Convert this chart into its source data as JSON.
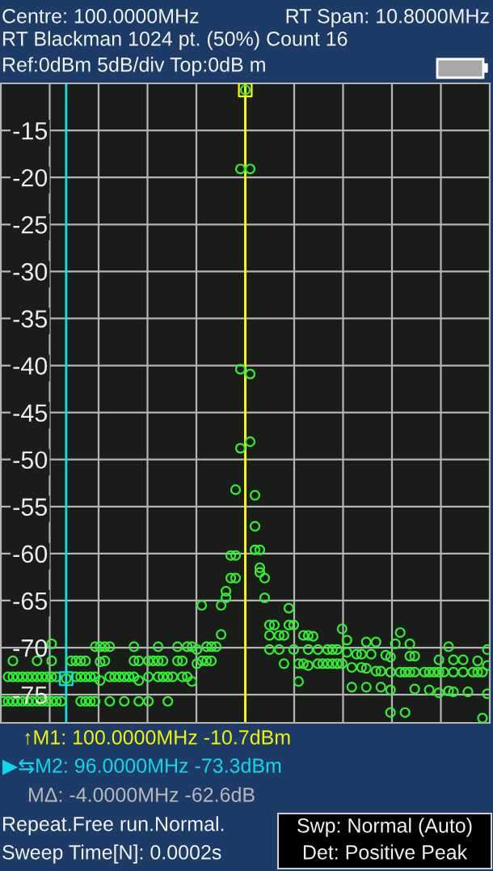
{
  "chart_data": {
    "type": "scatter",
    "annotations": [
      "Centre: 100.0000MHz",
      "RT Span: 10.8000MHz",
      "RT Blackman 1024 pt. (50%) Count 16",
      "Ref:0dBm 5dB/div Top:0dB m",
      "↑M1: 100.0000MHz -10.7dBm",
      "▶⇆M2: 96.0000MHz -73.3dBm",
      "MΔ: -4.0000MHz -62.6dB",
      "Repeat.Free run.Normal.",
      "Sweep Time[N]: 0.0002s",
      "Swp: Normal (Auto)",
      "Det: Positive Peak"
    ],
    "marker": "circle",
    "categories": [
      null,
      null,
      null,
      null,
      null,
      null,
      null,
      null,
      null,
      null,
      null,
      null,
      null,
      null,
      null,
      null,
      null,
      null,
      null,
      null,
      null,
      null,
      null,
      null,
      null,
      null,
      null,
      null,
      null,
      null,
      null,
      null,
      null,
      null,
      null,
      null,
      null,
      null,
      null,
      null,
      null,
      null,
      null,
      null,
      null,
      null,
      null,
      null,
      null,
      null,
      null,
      null,
      null,
      null,
      null,
      null,
      null,
      null,
      null,
      null,
      null,
      null,
      null,
      null,
      null,
      null,
      null,
      null,
      null,
      null,
      null,
      null,
      null,
      null,
      null,
      null,
      null,
      null,
      null,
      null,
      null,
      null,
      null,
      null,
      null,
      null,
      null,
      null,
      null,
      null,
      null,
      null,
      null,
      null,
      null,
      null,
      null,
      null,
      null,
      null,
      null
    ],
    "series": [
      {
        "color": "#30f030",
        "values": [
          -75.7,
          -73.1,
          -71.4,
          -73.1,
          -73.1,
          -73.1,
          -73.1,
          -71.4,
          -73.1,
          -73.1,
          -69.6,
          -73.1,
          -75.7,
          -73.3,
          -71.4,
          -71.4,
          -71.4,
          -71.4,
          -73.1,
          -69.9,
          -69.9,
          -69.9,
          -69.9,
          -73.1,
          -73.1,
          -73.1,
          -73.1,
          -69.9,
          -71.4,
          null,
          -71.4,
          -71.4,
          -69.9,
          -71.4,
          -73.1,
          -73.1,
          -69.9,
          -71.4,
          -69.9,
          -69.9,
          -70.2,
          -65.5,
          -69.9,
          -69.9,
          -69.9,
          -65.5,
          -64.0,
          -60.2,
          -53.2,
          -19.1,
          -10.7,
          -19.1,
          -53.8,
          -59.6,
          -62.6,
          -67.6,
          -67.6,
          -68.7,
          -68.7,
          -65.8,
          -67.6,
          -71.7,
          -68.7,
          -68.7,
          -68.8,
          -70.2,
          -71.7,
          -70.2,
          -70.2,
          -70.2,
          -68.0,
          -69.2,
          -72.1,
          -70.7,
          -70.7,
          -69.4,
          -70.7,
          -69.4,
          -72.5,
          -70.8,
          -71.0,
          -69.6,
          -68.4,
          -72.6,
          -69.6,
          -70.9,
          null,
          -72.6,
          -72.6,
          -72.6,
          -71.3,
          -72.6,
          -69.9,
          -71.3,
          null,
          -71.3,
          -74.7,
          -72.6,
          -71.4,
          -72.6,
          -70.2
        ]
      },
      {
        "color": "#30f030",
        "values": [
          null,
          -75.7,
          -73.1,
          -75.7,
          -75.7,
          -75.7,
          -75.7,
          -73.1,
          -75.7,
          -75.7,
          -71.4,
          -75.7,
          null,
          null,
          null,
          -73.1,
          -73.1,
          -73.1,
          -75.7,
          -73.1,
          -71.5,
          -71.4,
          -73.1,
          null,
          null,
          -75.7,
          null,
          -71.4,
          -73.5,
          null,
          -73.1,
          null,
          -71.4,
          -73.1,
          -75.7,
          null,
          -71.4,
          -73.1,
          -73.1,
          -73.6,
          -71.7,
          -71.4,
          -71.4,
          -71.4,
          null,
          -68.6,
          -64.7,
          -62.6,
          -60.2,
          -40.4,
          null,
          -40.9,
          -57.1,
          -61.5,
          -64.7,
          -68.7,
          null,
          -70.2,
          -71.7,
          -67.6,
          -70.2,
          -73.6,
          -71.7,
          -70.2,
          null,
          -71.7,
          null,
          -71.7,
          -71.7,
          -71.7,
          -71.7,
          -70.5,
          -74.2,
          null,
          -72.1,
          -72.2,
          null,
          -72.5,
          -74.2,
          null,
          -72.6,
          null,
          -72.6,
          -76.9,
          -70.9,
          -72.6,
          null,
          null,
          -74.5,
          null,
          -72.6,
          null,
          -74.6,
          -72.6,
          null,
          -72.6,
          null,
          null,
          -72.6,
          -77.5,
          -71.9
        ]
      },
      {
        "color": "#30f030",
        "values": [
          null,
          null,
          -75.7,
          null,
          null,
          null,
          null,
          -75.7,
          null,
          null,
          -73.1,
          null,
          null,
          null,
          null,
          null,
          -75.7,
          -75.7,
          null,
          -75.7,
          -73.5,
          null,
          -75.7,
          null,
          null,
          null,
          null,
          -73.1,
          -75.7,
          null,
          -75.7,
          null,
          -73.1,
          null,
          null,
          null,
          null,
          null,
          null,
          null,
          null,
          null,
          null,
          null,
          null,
          null,
          null,
          null,
          -62.6,
          -48.8,
          null,
          -48.1,
          -59.6,
          -62.0,
          null,
          -70.2,
          null,
          null,
          null,
          null,
          null,
          null,
          null,
          -71.9,
          null,
          null,
          null,
          null,
          null,
          null,
          null,
          null,
          null,
          null,
          null,
          -74.2,
          null,
          null,
          null,
          null,
          -74.5,
          null,
          null,
          null,
          -72.6,
          -74.4,
          null,
          null,
          null,
          null,
          -74.8,
          null,
          null,
          -74.7,
          null,
          null,
          null,
          null,
          null,
          null,
          -74.9
        ]
      },
      {
        "color": "#30f030",
        "values": [
          null,
          null,
          null,
          null,
          null,
          null,
          null,
          null,
          null,
          null,
          -75.7,
          null,
          null,
          null,
          null,
          null,
          null,
          null,
          null,
          null,
          null,
          null,
          null,
          null,
          null,
          null,
          null,
          null,
          null,
          null,
          null,
          null,
          null,
          null,
          null,
          null,
          null,
          null,
          null,
          null,
          null,
          null,
          null,
          null,
          null,
          null,
          null,
          null,
          null,
          null,
          null,
          null,
          null,
          null,
          null,
          null,
          null,
          null,
          null,
          null,
          null,
          null,
          null,
          null,
          null,
          null,
          null,
          null,
          null,
          null,
          null,
          null,
          null,
          null,
          null,
          null,
          null,
          null,
          null,
          null,
          -76.9,
          null,
          null,
          null,
          null,
          null,
          null,
          null,
          null,
          null,
          null,
          null,
          null,
          null,
          null,
          null,
          null,
          null,
          null,
          null,
          null
        ]
      },
      {
        "color": "#ffff00",
        "marker": "square",
        "values": [
          null,
          null,
          null,
          null,
          null,
          null,
          null,
          null,
          null,
          null,
          null,
          null,
          null,
          null,
          null,
          null,
          null,
          null,
          null,
          null,
          null,
          null,
          null,
          null,
          null,
          null,
          null,
          null,
          null,
          null,
          null,
          null,
          null,
          null,
          null,
          null,
          null,
          null,
          null,
          null,
          null,
          null,
          null,
          null,
          null,
          null,
          null,
          null,
          null,
          null,
          -10.7,
          null,
          null,
          null,
          null,
          null,
          null,
          null,
          null,
          null,
          null,
          null,
          null,
          null,
          null,
          null,
          null,
          null,
          null,
          null,
          null,
          null,
          null,
          null,
          null,
          null,
          null,
          null,
          null,
          null,
          null,
          null,
          null,
          null,
          null,
          null,
          null,
          null,
          null,
          null,
          null,
          null,
          null,
          null,
          null,
          null,
          null,
          null,
          null,
          null,
          null
        ]
      },
      {
        "color": "#00e5ee",
        "marker": "square",
        "values": [
          null,
          null,
          null,
          null,
          null,
          null,
          null,
          null,
          null,
          null,
          null,
          null,
          null,
          -73.3,
          null,
          null,
          null,
          null,
          null,
          null,
          null,
          null,
          null,
          null,
          null,
          null,
          null,
          null,
          null,
          null,
          null,
          null,
          null,
          null,
          null,
          null,
          null,
          null,
          null,
          null,
          null,
          null,
          null,
          null,
          null,
          null,
          null,
          null,
          null,
          null,
          null,
          null,
          null,
          null,
          null,
          null,
          null,
          null,
          null,
          null,
          null,
          null,
          null,
          null,
          null,
          null,
          null,
          null,
          null,
          null,
          null,
          null,
          null,
          null,
          null,
          null,
          null,
          null,
          null,
          null,
          null,
          null,
          null,
          null,
          null,
          null,
          null,
          null,
          null,
          null,
          null,
          null,
          null,
          null,
          null,
          null,
          null,
          null,
          null,
          null,
          null
        ]
      }
    ],
    "ylim": [
      -78,
      -10
    ],
    "yticks": [
      -15,
      -20,
      -25,
      -30,
      -35,
      -40,
      -45,
      -50,
      -55,
      -60,
      -65,
      -70,
      -75
    ],
    "tick_labels": "y",
    "grid": true
  }
}
